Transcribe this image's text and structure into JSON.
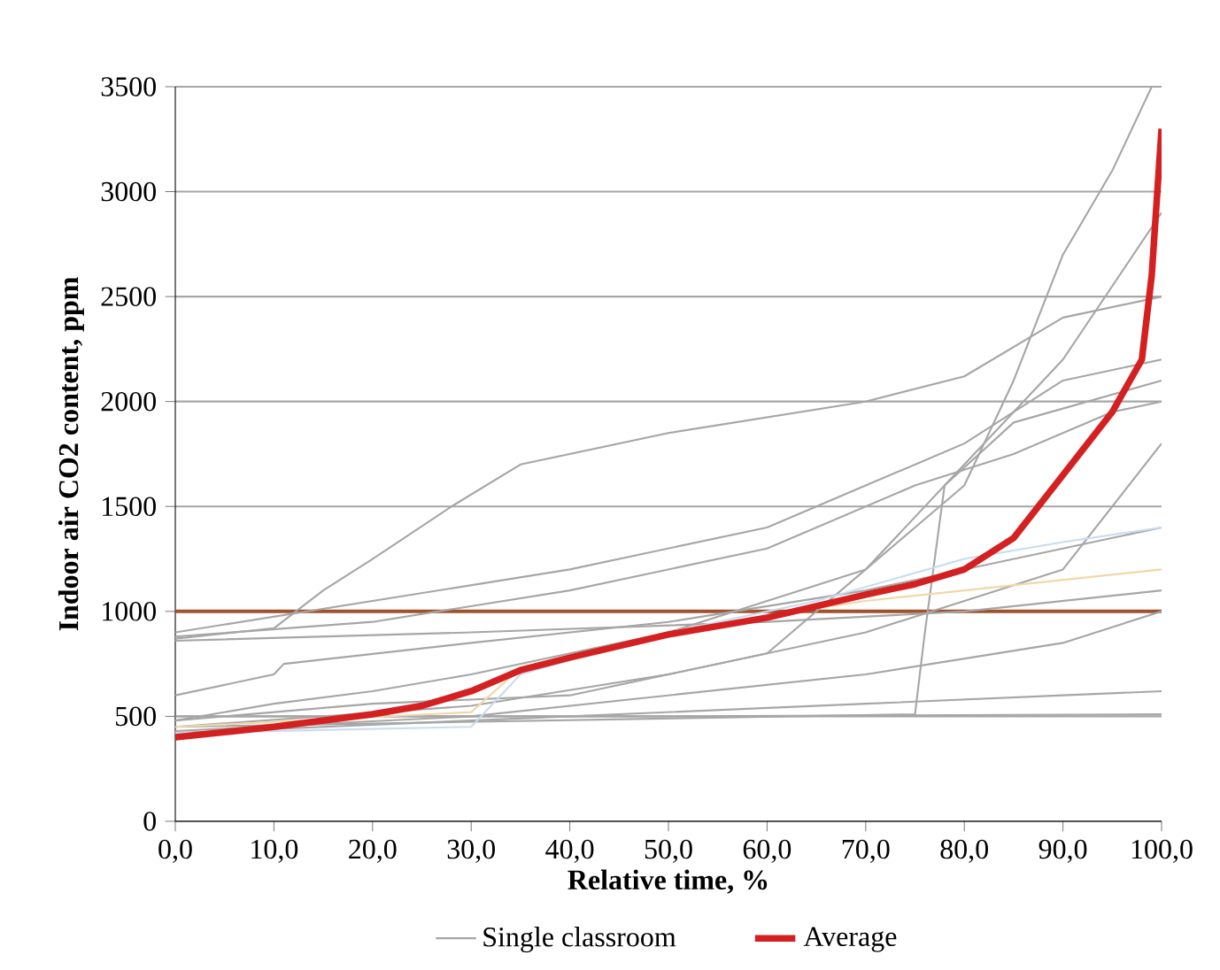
{
  "chart_data": {
    "type": "line",
    "xlabel": "Relative time, %",
    "ylabel": "Indoor  air CO2 content, ppm",
    "xlim": [
      0,
      100
    ],
    "ylim": [
      0,
      3500
    ],
    "xticks": [
      {
        "value": 0,
        "label": "0,0"
      },
      {
        "value": 10,
        "label": "10,0"
      },
      {
        "value": 20,
        "label": "20,0"
      },
      {
        "value": 30,
        "label": "30,0"
      },
      {
        "value": 40,
        "label": "40,0"
      },
      {
        "value": 50,
        "label": "50,0"
      },
      {
        "value": 60,
        "label": "60,0"
      },
      {
        "value": 70,
        "label": "70,0"
      },
      {
        "value": 80,
        "label": "80,0"
      },
      {
        "value": 90,
        "label": "90,0"
      },
      {
        "value": 100,
        "label": "100,0"
      }
    ],
    "yticks": [
      0,
      500,
      1000,
      1500,
      2000,
      2500,
      3000,
      3500
    ],
    "grid": "y",
    "legend": "bottom",
    "marker": "none",
    "line_style": "solid",
    "ref_lines": [
      {
        "axis": "y",
        "value": 1000,
        "color": "#a0522d"
      }
    ],
    "series": [
      {
        "name": "Average",
        "color": "#d42020",
        "x": [
          0,
          10,
          20,
          25,
          30,
          35,
          40,
          50,
          60,
          70,
          75,
          80,
          85,
          90,
          95,
          98,
          99,
          100
        ],
        "values": [
          400,
          450,
          510,
          550,
          620,
          720,
          780,
          890,
          970,
          1080,
          1130,
          1200,
          1350,
          1650,
          1950,
          2200,
          2600,
          3300
        ]
      },
      {
        "name": "Single classroom",
        "color": "#a6a6a6",
        "x": [
          0,
          10,
          20,
          30,
          50,
          70,
          80,
          85,
          90,
          95,
          99
        ],
        "values": [
          480,
          560,
          620,
          700,
          900,
          1200,
          1600,
          2100,
          2700,
          3100,
          3500
        ]
      },
      {
        "color": "#a6a6a6",
        "x": [
          0,
          10,
          15,
          20,
          28,
          35,
          50,
          70,
          80,
          90,
          100
        ],
        "values": [
          870,
          920,
          1100,
          1250,
          1500,
          1700,
          1850,
          2000,
          2120,
          2400,
          2500
        ]
      },
      {
        "color": "#a6a6a6",
        "x": [
          0,
          20,
          40,
          60,
          75,
          85,
          95,
          100
        ],
        "values": [
          880,
          950,
          1100,
          1300,
          1600,
          1750,
          1950,
          2000
        ]
      },
      {
        "color": "#a6a6a6",
        "x": [
          0,
          20,
          40,
          60,
          70,
          80,
          90,
          100
        ],
        "values": [
          900,
          1050,
          1200,
          1400,
          1600,
          1800,
          2100,
          2200
        ]
      },
      {
        "color": "#a6a6a6",
        "x": [
          0,
          20,
          40,
          60,
          70,
          80,
          90,
          100
        ],
        "values": [
          480,
          560,
          600,
          800,
          1200,
          1700,
          2200,
          2900
        ]
      },
      {
        "color": "#a6a6a6",
        "x": [
          0,
          75,
          76,
          78,
          85,
          100
        ],
        "values": [
          450,
          510,
          900,
          1600,
          1900,
          2100
        ]
      },
      {
        "color": "#a6a6a6",
        "x": [
          0,
          10,
          11,
          30,
          50,
          70,
          90,
          100
        ],
        "values": [
          600,
          700,
          750,
          850,
          950,
          1100,
          1300,
          1400
        ]
      },
      {
        "color": "#a6a6a6",
        "x": [
          0,
          30,
          60,
          80,
          100
        ],
        "values": [
          860,
          900,
          950,
          1000,
          1100
        ]
      },
      {
        "color": "#a6a6a6",
        "x": [
          0,
          30,
          50,
          70,
          90,
          100
        ],
        "values": [
          420,
          480,
          520,
          560,
          600,
          620
        ]
      },
      {
        "color": "#a6a6a6",
        "x": [
          0,
          50,
          100
        ],
        "values": [
          500,
          500,
          510
        ]
      },
      {
        "color": "#a6a6a6",
        "x": [
          0,
          30,
          50,
          70,
          90,
          100
        ],
        "values": [
          430,
          500,
          600,
          700,
          850,
          1000
        ]
      },
      {
        "color": "#a6a6a6",
        "x": [
          0,
          30,
          50,
          70,
          90,
          100
        ],
        "values": [
          450,
          550,
          700,
          900,
          1200,
          1800
        ]
      },
      {
        "color": "#c8dcf0",
        "x": [
          0,
          30,
          35,
          50,
          65,
          80,
          90,
          100
        ],
        "values": [
          420,
          450,
          700,
          900,
          1050,
          1250,
          1330,
          1400
        ]
      },
      {
        "color": "#f0d8a8",
        "x": [
          0,
          30,
          35,
          50,
          60,
          70,
          80,
          100
        ],
        "values": [
          450,
          520,
          730,
          900,
          980,
          1050,
          1100,
          1200
        ]
      }
    ]
  }
}
